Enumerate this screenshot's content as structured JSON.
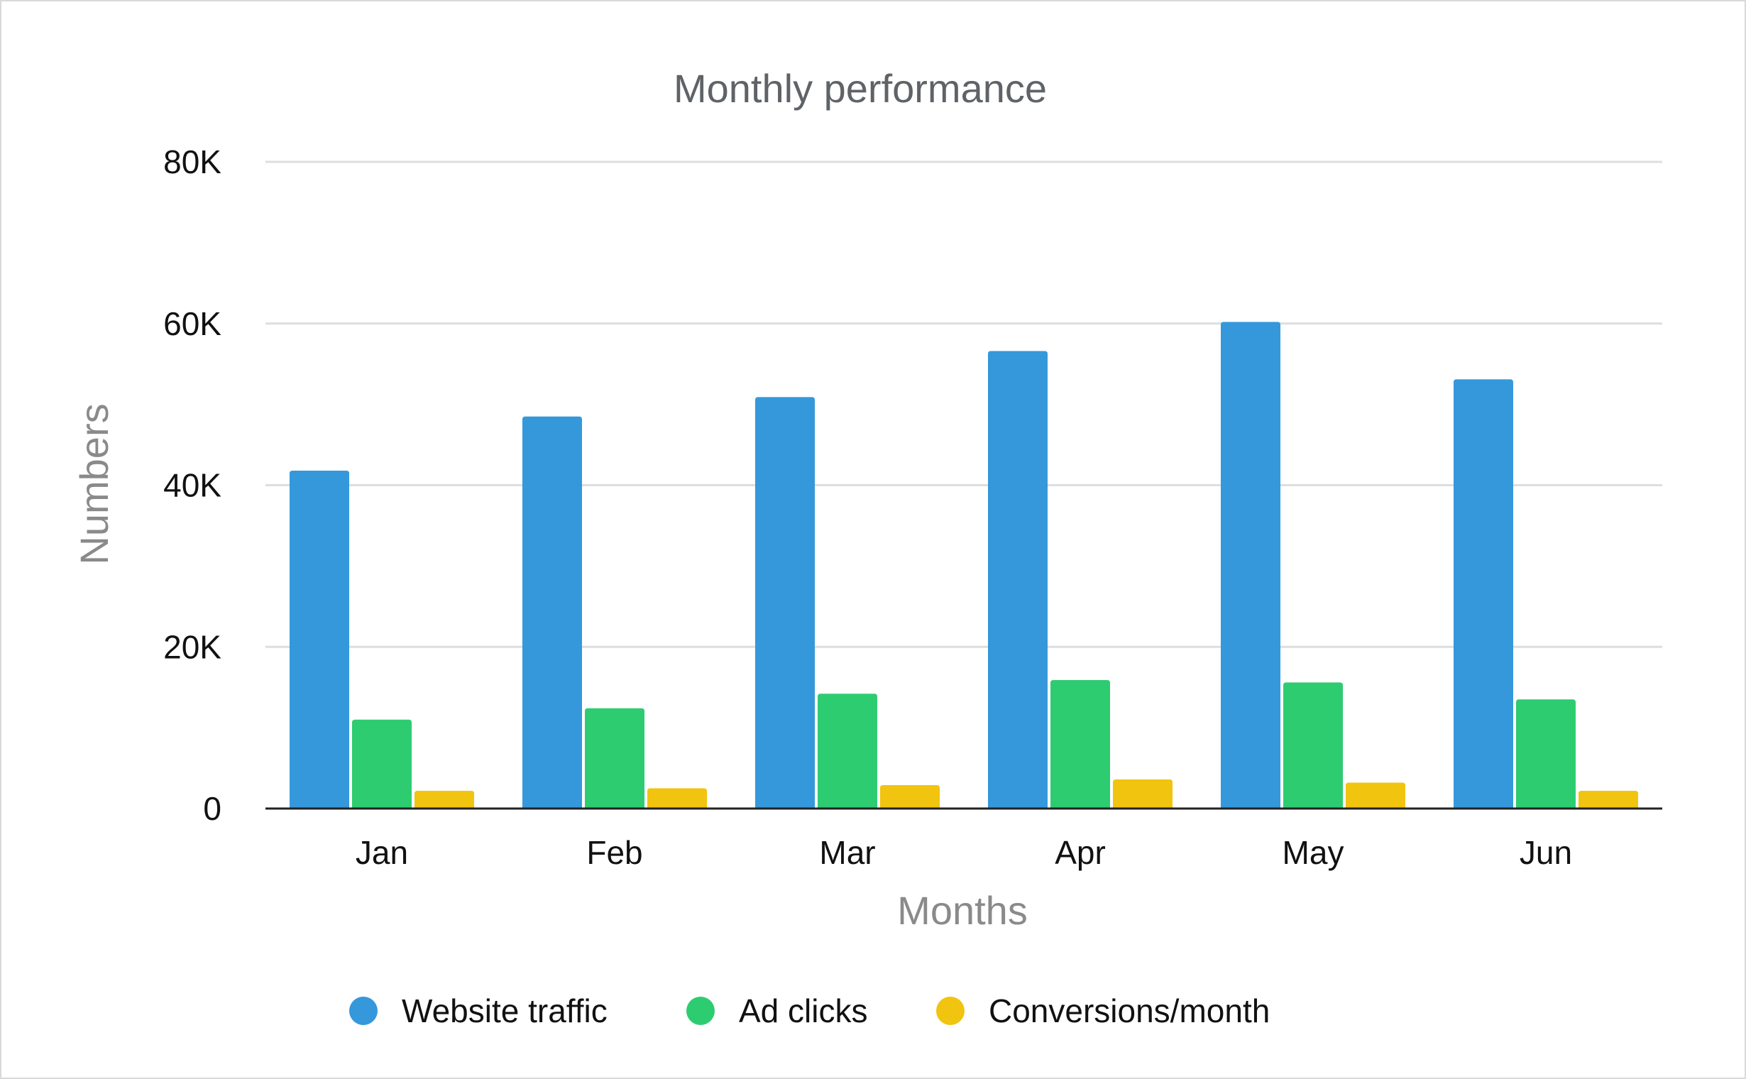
{
  "chart_data": {
    "type": "bar",
    "title": "Monthly performance",
    "xlabel": "Months",
    "ylabel": "Numbers",
    "categories": [
      "Jan",
      "Feb",
      "Mar",
      "Apr",
      "May",
      "Jun"
    ],
    "series": [
      {
        "name": "Website traffic",
        "color": "#3498db",
        "values": [
          41800,
          48500,
          50900,
          56600,
          60200,
          53100
        ]
      },
      {
        "name": "Ad clicks",
        "color": "#2ecc71",
        "values": [
          11000,
          12400,
          14200,
          15900,
          15600,
          13500
        ]
      },
      {
        "name": "Conversions/month",
        "color": "#f1c40f",
        "values": [
          2200,
          2500,
          2900,
          3600,
          3200,
          2200
        ]
      }
    ],
    "ylim": [
      0,
      80000
    ],
    "yticks": [
      0,
      20000,
      40000,
      60000,
      80000
    ],
    "ytick_labels": [
      "0",
      "20K",
      "40K",
      "60K",
      "80K"
    ],
    "grid": true,
    "legend_position": "bottom"
  }
}
